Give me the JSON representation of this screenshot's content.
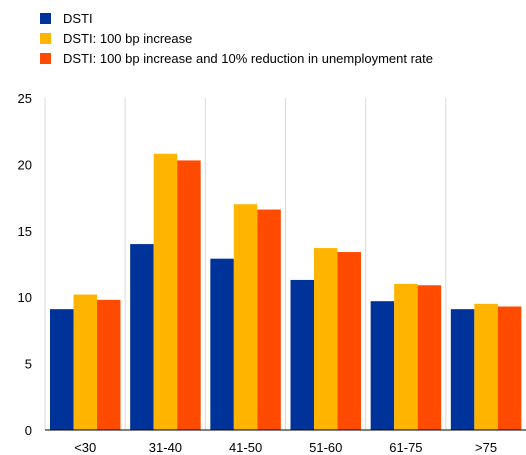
{
  "chart_data": {
    "type": "bar",
    "categories": [
      "<30",
      "31-40",
      "41-50",
      "51-60",
      "61-75",
      ">75"
    ],
    "series": [
      {
        "name": "DSTI",
        "color": "#003399",
        "values": [
          9.1,
          14.0,
          12.9,
          11.3,
          9.7,
          9.1
        ]
      },
      {
        "name": "DSTI: 100 bp increase",
        "color": "#ffb400",
        "values": [
          10.2,
          20.8,
          17.0,
          13.7,
          11.0,
          9.5
        ]
      },
      {
        "name": "DSTI: 100 bp increase and 10% reduction in unemployment rate",
        "color": "#ff4b00",
        "values": [
          9.8,
          20.3,
          16.6,
          13.4,
          10.9,
          9.3
        ]
      }
    ],
    "yticks": [
      "0",
      "5",
      "10",
      "15",
      "20",
      "25"
    ],
    "ylim": [
      0,
      25
    ],
    "grid": "vertical",
    "legend_position": "top-left"
  }
}
